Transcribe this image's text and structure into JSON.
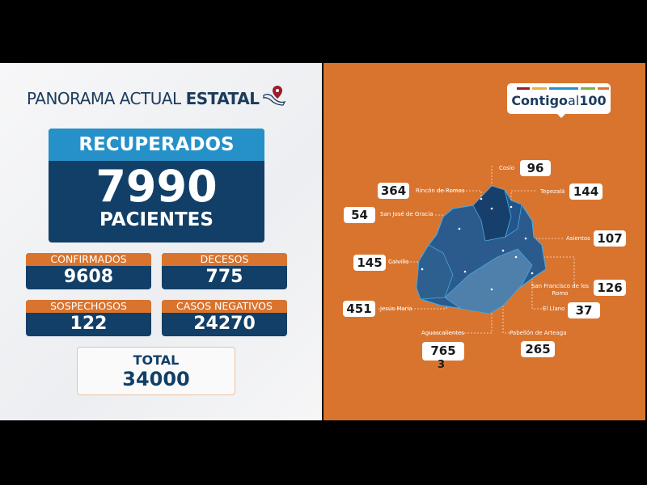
{
  "header": {
    "title_light": "PANORAMA ACTUAL",
    "title_bold": "ESTATAL"
  },
  "recuperados": {
    "label": "RECUPERADOS",
    "value": "7990",
    "unit": "PACIENTES"
  },
  "stats": [
    {
      "label": "CONFIRMADOS",
      "value": "9608"
    },
    {
      "label": "DECESOS",
      "value": "775"
    },
    {
      "label": "SOSPECHOSOS",
      "value": "122"
    },
    {
      "label": "CASOS NEGATIVOS",
      "value": "24270"
    }
  ],
  "total": {
    "label": "TOTAL",
    "value": "34000"
  },
  "logo": {
    "text_bold": "Contigo",
    "text_light": "al",
    "text_num": "100"
  },
  "colors": {
    "navy": "#123f67",
    "orange": "#d9742e",
    "blue": "#2691c8"
  },
  "municipalities": [
    {
      "name": "Cosío",
      "value": "96"
    },
    {
      "name": "Rincón de Romos",
      "value": "364"
    },
    {
      "name": "Tepezalá",
      "value": "144"
    },
    {
      "name": "San José de Gracia",
      "value": "54"
    },
    {
      "name": "Asientos",
      "value": "107"
    },
    {
      "name": "Calvillo",
      "value": "145"
    },
    {
      "name": "San Francisco de los Romo",
      "value": "126"
    },
    {
      "name": "Jesús María",
      "value": "451"
    },
    {
      "name": "El Llano",
      "value": "37"
    },
    {
      "name": "Aguascalientes",
      "value": "765",
      "extra": "3"
    },
    {
      "name": "Pabellón de Arteaga",
      "value": "265"
    }
  ]
}
